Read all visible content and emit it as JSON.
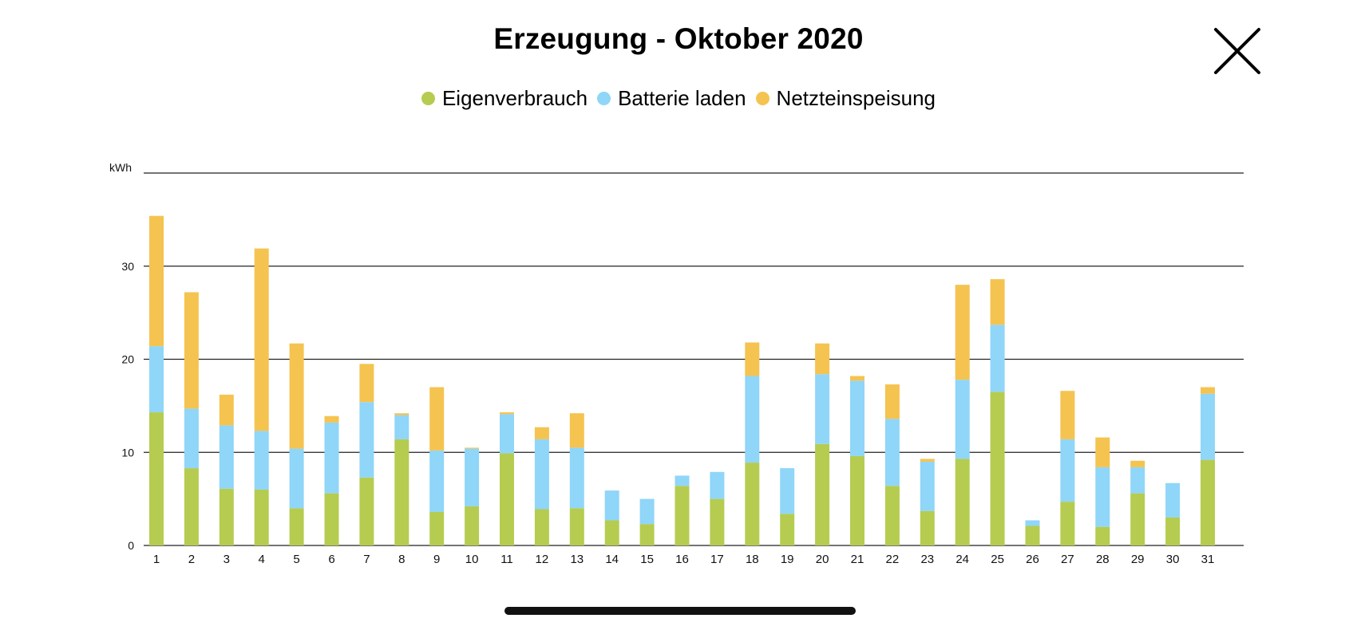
{
  "title": "Erzeugung - Oktober 2020",
  "colors": {
    "Eigenverbrauch": "#b5cc50",
    "Batterie laden": "#8fd6f8",
    "Netzteinspeisung": "#f5c350"
  },
  "chart_data": {
    "type": "bar",
    "stacked": true,
    "title": "Erzeugung - Oktober 2020",
    "ylabel": "kWh",
    "ylim": [
      0,
      40
    ],
    "yticks": [
      0,
      10,
      20,
      30
    ],
    "grid": true,
    "legend": "top-center",
    "categories": [
      "1",
      "2",
      "3",
      "4",
      "5",
      "6",
      "7",
      "8",
      "9",
      "10",
      "11",
      "12",
      "13",
      "14",
      "15",
      "16",
      "17",
      "18",
      "19",
      "20",
      "21",
      "22",
      "23",
      "24",
      "25",
      "26",
      "27",
      "28",
      "29",
      "30",
      "31"
    ],
    "series": [
      {
        "name": "Eigenverbrauch",
        "values": [
          14.3,
          8.3,
          6.1,
          6.0,
          4.0,
          5.6,
          7.3,
          11.4,
          3.6,
          4.2,
          9.9,
          3.9,
          4.0,
          2.7,
          2.3,
          6.4,
          5.0,
          8.9,
          3.4,
          10.9,
          9.6,
          6.4,
          3.7,
          9.3,
          16.5,
          2.1,
          4.7,
          2.0,
          5.6,
          3.0,
          9.2
        ]
      },
      {
        "name": "Batterie laden",
        "values": [
          7.1,
          6.4,
          6.8,
          6.3,
          6.4,
          7.6,
          8.1,
          2.6,
          6.6,
          6.2,
          4.2,
          7.5,
          6.5,
          3.2,
          2.7,
          1.1,
          2.9,
          9.3,
          4.9,
          7.5,
          8.1,
          7.2,
          5.3,
          8.5,
          7.2,
          0.6,
          6.7,
          6.4,
          2.8,
          3.7,
          7.1
        ]
      },
      {
        "name": "Netzteinspeisung",
        "values": [
          14.0,
          12.5,
          3.3,
          19.6,
          11.3,
          0.7,
          4.1,
          0.2,
          6.8,
          0.1,
          0.2,
          1.3,
          3.7,
          0.0,
          0.0,
          0.0,
          0.0,
          3.6,
          0.0,
          3.3,
          0.5,
          3.7,
          0.3,
          10.2,
          4.9,
          0.0,
          5.2,
          3.2,
          0.7,
          0.0,
          0.7
        ]
      }
    ]
  }
}
